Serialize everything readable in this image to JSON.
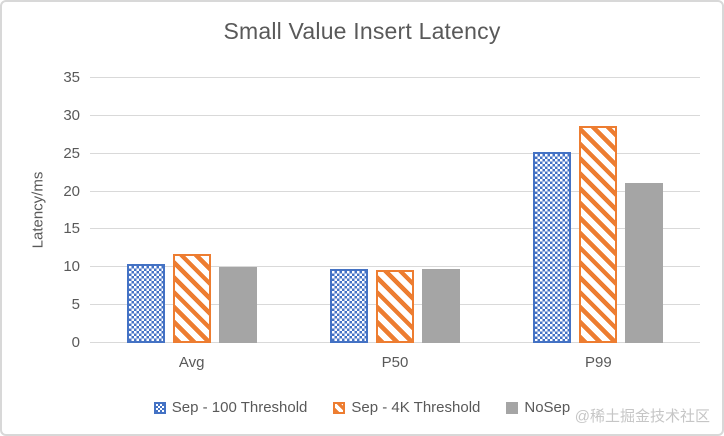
{
  "watermark": "@稀土掘金技术社区",
  "colors": {
    "series_blue": "#4472C4",
    "series_orange": "#ED7D31",
    "series_gray": "#A5A5A5",
    "grid": "#D9D9D9",
    "text": "#595959",
    "card_border": "#D8D8D8",
    "watermark": "#C6C6C6",
    "background": "#FFFFFF"
  },
  "chart_data": {
    "type": "bar",
    "title": "Small Value Insert Latency",
    "xlabel": "",
    "ylabel": "Latency/ms",
    "categories": [
      "Avg",
      "P50",
      "P99"
    ],
    "series": [
      {
        "name": "Sep - 100 Threshold",
        "color": "#4472C4",
        "pattern": "checker",
        "values": [
          10.4,
          9.8,
          25.2
        ]
      },
      {
        "name": "Sep - 4K Threshold",
        "color": "#ED7D31",
        "pattern": "diagonal",
        "values": [
          11.7,
          9.6,
          28.6
        ]
      },
      {
        "name": "NoSep",
        "color": "#A5A5A5",
        "pattern": "solid",
        "values": [
          10.1,
          9.8,
          21.1
        ]
      }
    ],
    "ylim": [
      0,
      35
    ],
    "yticks": [
      0,
      5,
      10,
      15,
      20,
      25,
      30,
      35
    ],
    "grid": true,
    "legend_position": "bottom"
  }
}
